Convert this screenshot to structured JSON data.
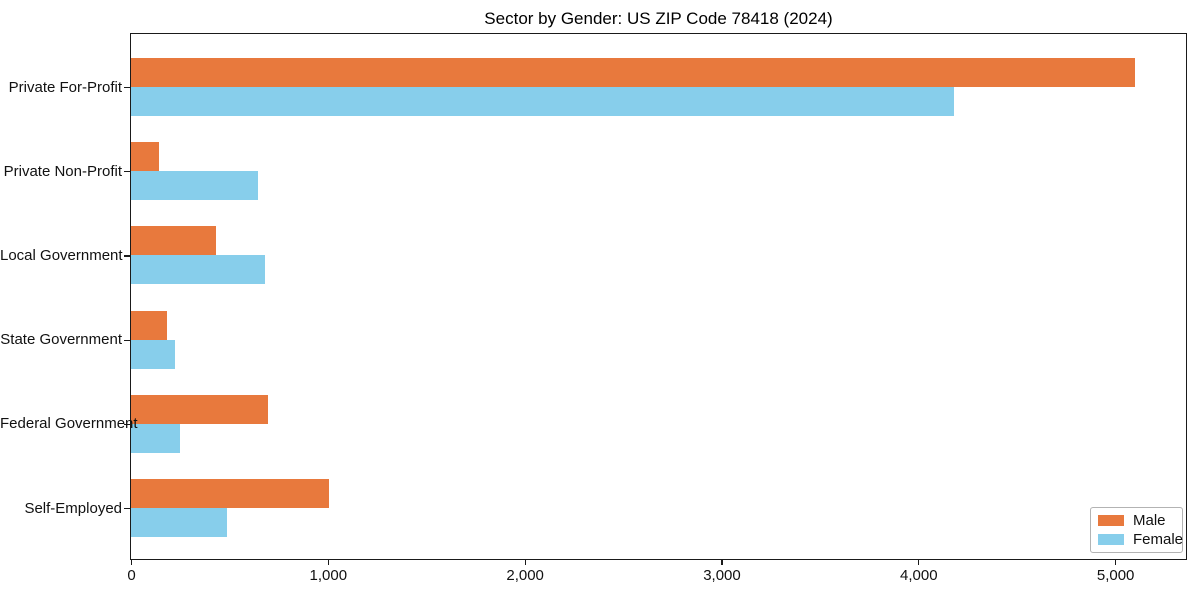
{
  "chart_data": {
    "type": "bar",
    "orientation": "horizontal",
    "title": "Sector by Gender: US ZIP Code 78418 (2024)",
    "categories": [
      "Private For-Profit",
      "Private Non-Profit",
      "Local Government",
      "State Government",
      "Federal Government",
      "Self-Employed"
    ],
    "series": [
      {
        "name": "Male",
        "color": "#e8793d",
        "values": [
          5100,
          140,
          430,
          185,
          695,
          1005
        ]
      },
      {
        "name": "Female",
        "color": "#87ceeb",
        "values": [
          4180,
          645,
          680,
          225,
          250,
          490
        ]
      }
    ],
    "xlabel": "",
    "ylabel": "",
    "xlim": [
      0,
      5355
    ],
    "xticks": [
      0,
      1000,
      2000,
      3000,
      4000,
      5000
    ],
    "xtick_labels": [
      "0",
      "1,000",
      "2,000",
      "3,000",
      "4,000",
      "5,000"
    ],
    "grid": false,
    "legend": {
      "position": "lower right",
      "entries": [
        "Male",
        "Female"
      ]
    }
  },
  "axis_color": "#1a1a1a"
}
